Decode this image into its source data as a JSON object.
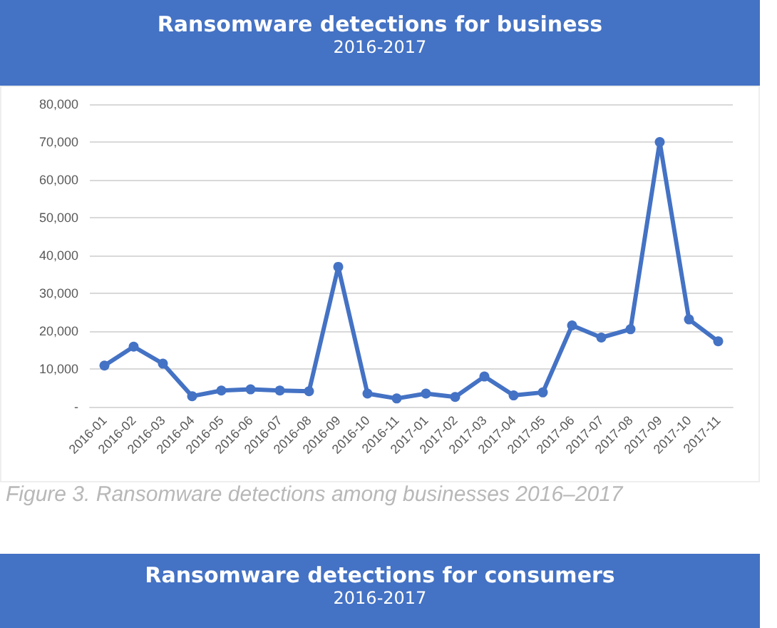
{
  "chart_data": {
    "type": "line",
    "title": "Ransomware detections for business",
    "subtitle": "2016-2017",
    "categories": [
      "2016-01",
      "2016-02",
      "2016-03",
      "2016-04",
      "2016-05",
      "2016-06",
      "2016-07",
      "2016-08",
      "2016-09",
      "2016-10",
      "2016-11",
      "2017-01",
      "2017-02",
      "2017-03",
      "2017-04",
      "2017-05",
      "2017-06",
      "2017-07",
      "2017-08",
      "2017-09",
      "2017-10",
      "2017-11"
    ],
    "series": [
      {
        "color": "#4472c4",
        "values": [
          10900,
          15900,
          11400,
          2800,
          4300,
          4600,
          4300,
          4100,
          37000,
          3500,
          2200,
          3500,
          2600,
          8000,
          3000,
          3800,
          21500,
          18300,
          20500,
          70000,
          23100,
          17300
        ]
      }
    ],
    "ylim": [
      0,
      80000
    ],
    "yticks": [
      {
        "value": 0,
        "label": "-"
      },
      {
        "value": 10000,
        "label": "10,000"
      },
      {
        "value": 20000,
        "label": "20,000"
      },
      {
        "value": 30000,
        "label": "30,000"
      },
      {
        "value": 40000,
        "label": "40,000"
      },
      {
        "value": 50000,
        "label": "50,000"
      },
      {
        "value": 60000,
        "label": "60,000"
      },
      {
        "value": 70000,
        "label": "70,000"
      },
      {
        "value": 80000,
        "label": "80,000"
      }
    ],
    "grid": "y",
    "marker": "circle",
    "line_style": "solid",
    "annotations": [
      "Figure 3. Ransomware detections among businesses 2016–2017",
      "Ransomware detections for consumers",
      "2016-2017"
    ]
  }
}
